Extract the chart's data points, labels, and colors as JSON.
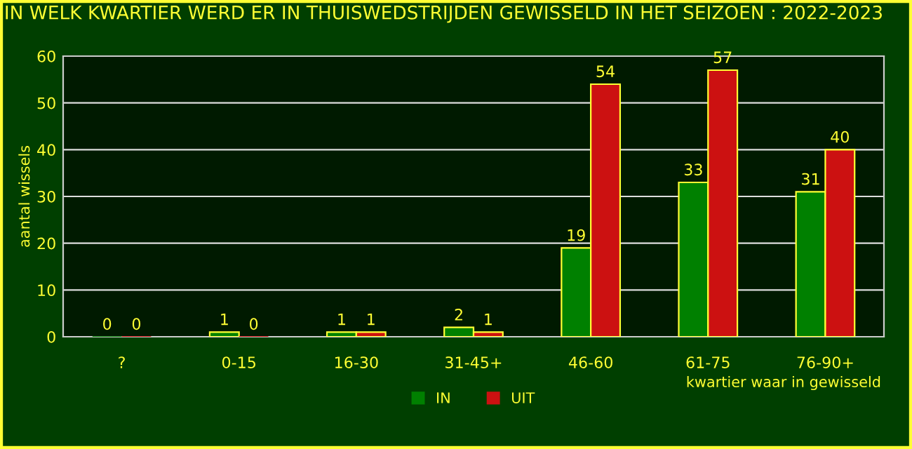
{
  "chart_data": {
    "type": "bar",
    "title": "IN WELK KWARTIER WERD ER IN THUISWEDSTRIJDEN GEWISSELD IN HET SEIZOEN : 2022-2023",
    "xlabel": "kwartier waar in gewisseld",
    "ylabel": "aantal wissels",
    "categories": [
      "?",
      "0-15",
      "16-30",
      "31-45+",
      "46-60",
      "61-75",
      "76-90+"
    ],
    "series": [
      {
        "name": "IN",
        "color": "#008000",
        "values": [
          0,
          1,
          1,
          2,
          19,
          33,
          31
        ]
      },
      {
        "name": "UIT",
        "color": "#cc1111",
        "values": [
          0,
          0,
          1,
          1,
          54,
          57,
          40
        ]
      }
    ],
    "ylim": [
      0,
      60
    ],
    "yticks": [
      0,
      10,
      20,
      30,
      40,
      50,
      60
    ],
    "grid": "y",
    "legend": "bottom",
    "data_labels": true
  }
}
